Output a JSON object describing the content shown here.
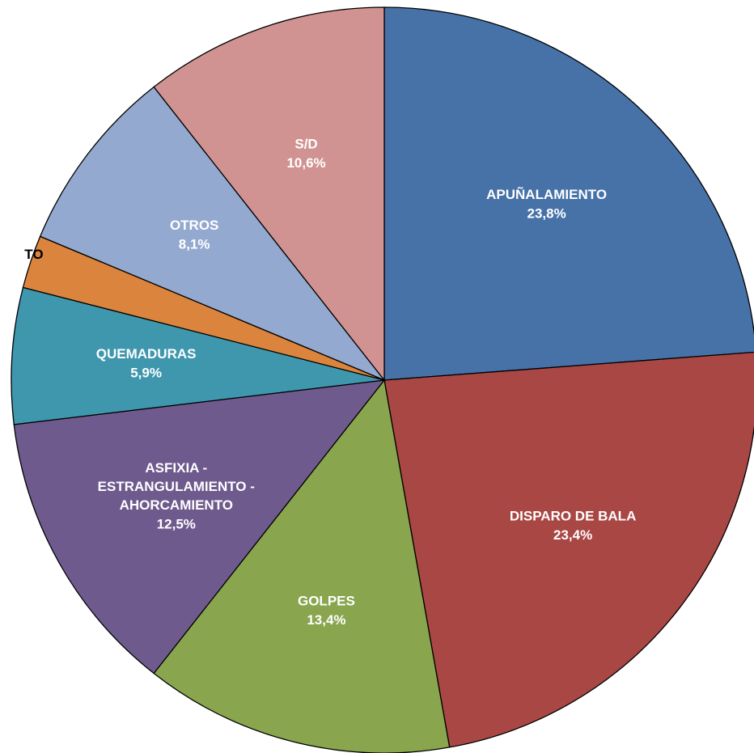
{
  "chart_data": {
    "type": "pie",
    "categories": [
      "APUÑALAMIENTO",
      "DISPARO DE BALA",
      "GOLPES",
      "ASFIXIA - ESTRANGULAMIENTO - AHORCAMIENTO",
      "QUEMADURAS",
      "TO",
      "OTROS",
      "S/D"
    ],
    "values": [
      23.8,
      23.4,
      13.4,
      12.5,
      5.9,
      2.3,
      8.1,
      10.6
    ],
    "value_labels": [
      "23,8%",
      "23,4%",
      "13,4%",
      "12,5%",
      "5,9%",
      null,
      "8,1%",
      "10,6%"
    ],
    "colors": [
      "#4672a8",
      "#a94744",
      "#89a64e",
      "#6f5a8e",
      "#3f97ae",
      "#db843d",
      "#93a9cf",
      "#d19392"
    ]
  }
}
